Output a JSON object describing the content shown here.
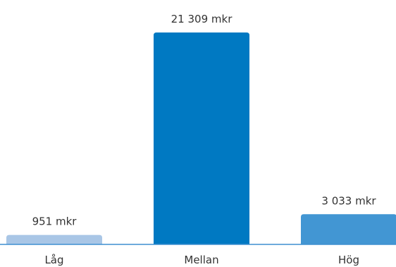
{
  "chart_data": {
    "type": "bar",
    "categories": [
      "Låg",
      "Mellan",
      "Hög"
    ],
    "values": [
      951,
      21309,
      3033
    ],
    "value_labels": [
      "951 mkr",
      "21 309 mkr",
      "3 033 mkr"
    ],
    "colors": [
      "#a9c6e6",
      "#0079c2",
      "#4296d3"
    ],
    "axis_color": "#3f8fd0",
    "title": "",
    "xlabel": "",
    "ylabel": "",
    "grid": false,
    "legend": "none"
  }
}
